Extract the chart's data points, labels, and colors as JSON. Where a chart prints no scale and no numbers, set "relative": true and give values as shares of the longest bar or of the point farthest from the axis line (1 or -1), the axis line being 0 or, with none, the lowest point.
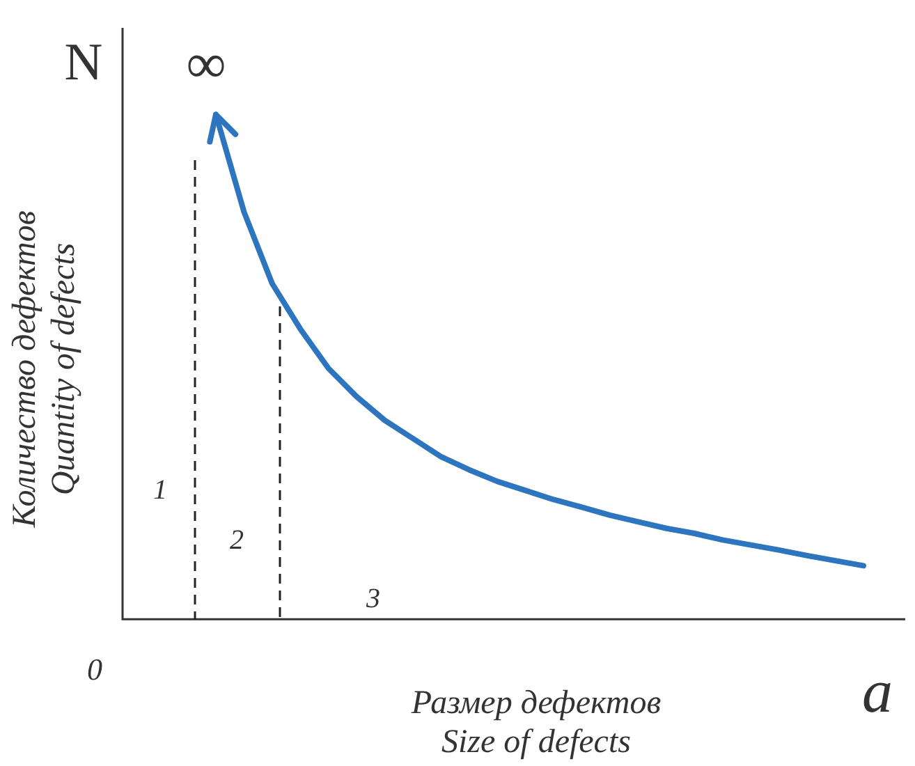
{
  "chart_data": {
    "type": "line",
    "relative": true,
    "xlabel": "Размер дефектов\nSize of defects",
    "ylabel": "Количество дефектов\nQuantity of defects",
    "categories": [
      null,
      null,
      null,
      null,
      null,
      null,
      null,
      null,
      null,
      null,
      null,
      null,
      null,
      null,
      null,
      null,
      null,
      null,
      null,
      null,
      null,
      null,
      null,
      null
    ],
    "legend": false,
    "marker": "none",
    "line_style": "solid",
    "series": [
      {
        "color": "#2e75c0",
        "values": [
          1,
          0.807,
          0.665,
          0.575,
          0.497,
          0.441,
          0.394,
          0.358,
          0.322,
          0.296,
          0.273,
          0.255,
          0.237,
          0.222,
          0.206,
          0.193,
          0.18,
          0.17,
          0.157,
          0.147,
          0.137,
          0.126,
          0.116,
          0.106
        ]
      }
    ],
    "annotations": [
      "N",
      "∞",
      "a",
      "0",
      "1",
      "2",
      "3"
    ]
  }
}
